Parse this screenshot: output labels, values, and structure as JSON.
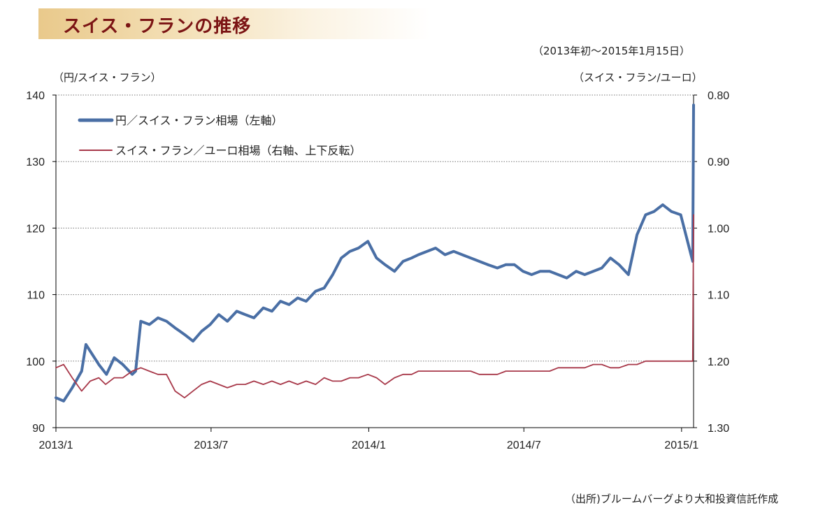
{
  "page": {
    "title": "スイス・フランの推移",
    "period": "（2013年初～2015年1月15日）",
    "left_unit": "（円/スイス・フラン）",
    "right_unit": "（スイス・フラン/ユーロ）",
    "source": "（出所)ブルームバーグより大和投資信託作成"
  },
  "colors": {
    "title_text": "#7b1414",
    "jpy_series": "#4a6fa5",
    "eur_series": "#a8394a",
    "grid": "#777777",
    "axis": "#000000"
  },
  "chart_data": {
    "type": "line",
    "x_ticks": [
      "2013/1",
      "2013/7",
      "2014/1",
      "2014/7",
      "2015/1"
    ],
    "x_tick_dates": [
      "2013-01-01",
      "2013-07-01",
      "2014-01-01",
      "2014-07-01",
      "2015-01-01"
    ],
    "x_range": [
      "2013-01-01",
      "2015-01-15"
    ],
    "y_left": {
      "ticks": [
        "90",
        "100",
        "110",
        "120",
        "130",
        "140"
      ],
      "range": [
        90,
        140
      ]
    },
    "y_right": {
      "ticks": [
        "1.30",
        "1.20",
        "1.10",
        "1.00",
        "0.90",
        "0.80"
      ],
      "range": [
        1.3,
        0.8
      ],
      "inverted": true
    },
    "grid": "horizontal dotted",
    "legend_position": "top-left",
    "series": [
      {
        "name": "円／スイス・フラン相場（左軸）",
        "axis": "left",
        "x": [
          "2013-01-01",
          "2013-01-10",
          "2013-01-20",
          "2013-01-31",
          "2013-02-05",
          "2013-02-10",
          "2013-02-20",
          "2013-03-01",
          "2013-03-10",
          "2013-03-20",
          "2013-03-31",
          "2013-04-04",
          "2013-04-10",
          "2013-04-20",
          "2013-04-30",
          "2013-05-10",
          "2013-05-20",
          "2013-05-31",
          "2013-06-10",
          "2013-06-20",
          "2013-06-30",
          "2013-07-10",
          "2013-07-20",
          "2013-07-31",
          "2013-08-10",
          "2013-08-20",
          "2013-08-31",
          "2013-09-10",
          "2013-09-20",
          "2013-09-30",
          "2013-10-10",
          "2013-10-20",
          "2013-10-31",
          "2013-11-10",
          "2013-11-20",
          "2013-11-30",
          "2013-12-10",
          "2013-12-20",
          "2013-12-31",
          "2014-01-10",
          "2014-01-20",
          "2014-01-31",
          "2014-02-10",
          "2014-02-20",
          "2014-02-28",
          "2014-03-10",
          "2014-03-20",
          "2014-03-31",
          "2014-04-10",
          "2014-04-20",
          "2014-04-30",
          "2014-05-10",
          "2014-05-20",
          "2014-05-31",
          "2014-06-10",
          "2014-06-20",
          "2014-06-30",
          "2014-07-10",
          "2014-07-20",
          "2014-07-31",
          "2014-08-10",
          "2014-08-20",
          "2014-08-31",
          "2014-09-10",
          "2014-09-20",
          "2014-09-30",
          "2014-10-10",
          "2014-10-20",
          "2014-10-31",
          "2014-11-10",
          "2014-11-20",
          "2014-11-30",
          "2014-12-10",
          "2014-12-20",
          "2014-12-31",
          "2015-01-07",
          "2015-01-12",
          "2015-01-14",
          "2015-01-15"
        ],
        "values": [
          94.5,
          94.0,
          96.0,
          98.5,
          102.5,
          101.5,
          99.5,
          98.0,
          100.5,
          99.5,
          98.0,
          98.5,
          106.0,
          105.5,
          106.5,
          106.0,
          105.0,
          104.0,
          103.0,
          104.5,
          105.5,
          107.0,
          106.0,
          107.5,
          107.0,
          106.5,
          108.0,
          107.5,
          109.0,
          108.5,
          109.5,
          109.0,
          110.5,
          111.0,
          113.0,
          115.5,
          116.5,
          117.0,
          118.0,
          115.5,
          114.5,
          113.5,
          115.0,
          115.5,
          116.0,
          116.5,
          117.0,
          116.0,
          116.5,
          116.0,
          115.5,
          115.0,
          114.5,
          114.0,
          114.5,
          114.5,
          113.5,
          113.0,
          113.5,
          113.5,
          113.0,
          112.5,
          113.5,
          113.0,
          113.5,
          114.0,
          115.5,
          114.5,
          113.0,
          119.0,
          122.0,
          122.5,
          123.5,
          122.5,
          122.0,
          118.5,
          116.0,
          115.0,
          138.5
        ]
      },
      {
        "name": "スイス・フラン／ユーロ相場（右軸、上下反転）",
        "axis": "right",
        "x": [
          "2013-01-01",
          "2013-01-10",
          "2013-01-20",
          "2013-01-31",
          "2013-02-10",
          "2013-02-20",
          "2013-02-28",
          "2013-03-10",
          "2013-03-20",
          "2013-03-31",
          "2013-04-10",
          "2013-04-20",
          "2013-04-30",
          "2013-05-10",
          "2013-05-20",
          "2013-05-31",
          "2013-06-10",
          "2013-06-20",
          "2013-06-30",
          "2013-07-10",
          "2013-07-20",
          "2013-07-31",
          "2013-08-10",
          "2013-08-20",
          "2013-08-31",
          "2013-09-10",
          "2013-09-20",
          "2013-09-30",
          "2013-10-10",
          "2013-10-20",
          "2013-10-31",
          "2013-11-10",
          "2013-11-20",
          "2013-11-30",
          "2013-12-10",
          "2013-12-20",
          "2013-12-31",
          "2014-01-10",
          "2014-01-20",
          "2014-01-31",
          "2014-02-10",
          "2014-02-20",
          "2014-02-28",
          "2014-03-10",
          "2014-03-20",
          "2014-03-31",
          "2014-04-10",
          "2014-04-20",
          "2014-04-30",
          "2014-05-10",
          "2014-05-20",
          "2014-05-31",
          "2014-06-10",
          "2014-06-20",
          "2014-06-30",
          "2014-07-10",
          "2014-07-20",
          "2014-07-31",
          "2014-08-10",
          "2014-08-20",
          "2014-08-31",
          "2014-09-10",
          "2014-09-20",
          "2014-09-30",
          "2014-10-10",
          "2014-10-20",
          "2014-10-31",
          "2014-11-10",
          "2014-11-20",
          "2014-11-30",
          "2014-12-10",
          "2014-12-20",
          "2014-12-31",
          "2015-01-10",
          "2015-01-14",
          "2015-01-15"
        ],
        "values": [
          1.21,
          1.205,
          1.225,
          1.245,
          1.23,
          1.225,
          1.235,
          1.225,
          1.225,
          1.215,
          1.21,
          1.215,
          1.22,
          1.22,
          1.245,
          1.255,
          1.245,
          1.235,
          1.23,
          1.235,
          1.24,
          1.235,
          1.235,
          1.23,
          1.235,
          1.23,
          1.235,
          1.23,
          1.235,
          1.23,
          1.235,
          1.225,
          1.23,
          1.23,
          1.225,
          1.225,
          1.22,
          1.225,
          1.235,
          1.225,
          1.22,
          1.22,
          1.215,
          1.215,
          1.215,
          1.215,
          1.215,
          1.215,
          1.215,
          1.22,
          1.22,
          1.22,
          1.215,
          1.215,
          1.215,
          1.215,
          1.215,
          1.215,
          1.21,
          1.21,
          1.21,
          1.21,
          1.205,
          1.205,
          1.21,
          1.21,
          1.205,
          1.205,
          1.2,
          1.2,
          1.2,
          1.2,
          1.2,
          1.2,
          1.2,
          0.98
        ]
      }
    ]
  }
}
